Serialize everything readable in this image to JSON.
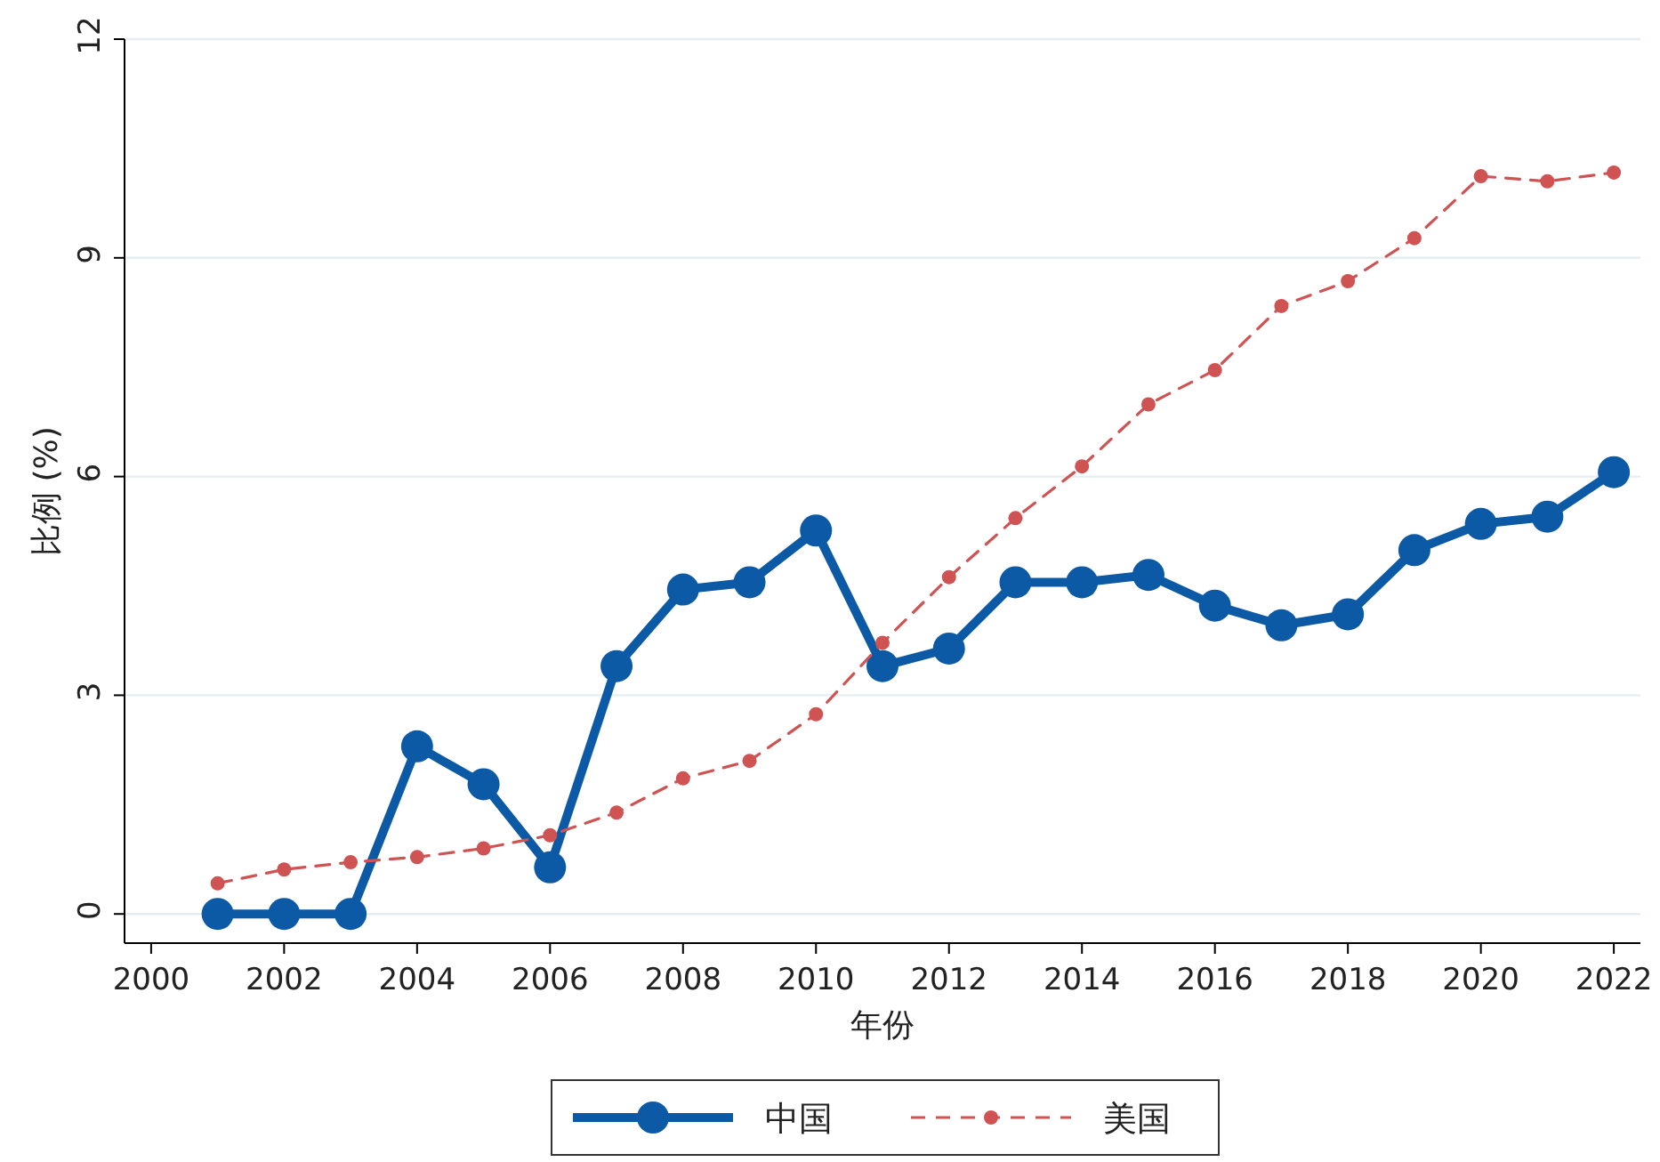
{
  "chart_data": {
    "type": "line",
    "xlabel": "年份",
    "ylabel": "比例 (%)",
    "x": [
      2001,
      2002,
      2003,
      2004,
      2005,
      2006,
      2007,
      2008,
      2009,
      2010,
      2011,
      2012,
      2013,
      2014,
      2015,
      2016,
      2017,
      2018,
      2019,
      2020,
      2021,
      2022
    ],
    "series": [
      {
        "name": "中国",
        "color": "#0c5aa6",
        "line_style": "solid",
        "marker": "circle",
        "values": [
          0,
          0,
          0,
          2.3,
          1.78,
          0.64,
          3.4,
          4.45,
          4.55,
          5.26,
          3.4,
          3.64,
          4.55,
          4.55,
          4.65,
          4.23,
          3.96,
          4.11,
          4.99,
          5.35,
          5.45,
          6.06
        ]
      },
      {
        "name": "美国",
        "color": "#d05353",
        "line_style": "dashed",
        "marker": "circle",
        "values": [
          0.42,
          0.61,
          0.71,
          0.78,
          0.9,
          1.08,
          1.39,
          1.86,
          2.1,
          2.74,
          3.72,
          4.62,
          5.43,
          6.14,
          6.99,
          7.46,
          8.34,
          8.68,
          9.27,
          10.12,
          10.05,
          10.17
        ]
      }
    ],
    "xlim": [
      1999.6,
      2022.4
    ],
    "ylim": [
      -0.4,
      12
    ],
    "xticks": [
      2000,
      2002,
      2004,
      2006,
      2008,
      2010,
      2012,
      2014,
      2016,
      2018,
      2020,
      2022
    ],
    "yticks": [
      0,
      3,
      6,
      9,
      12
    ],
    "grid": "y",
    "legend": "bottom"
  }
}
